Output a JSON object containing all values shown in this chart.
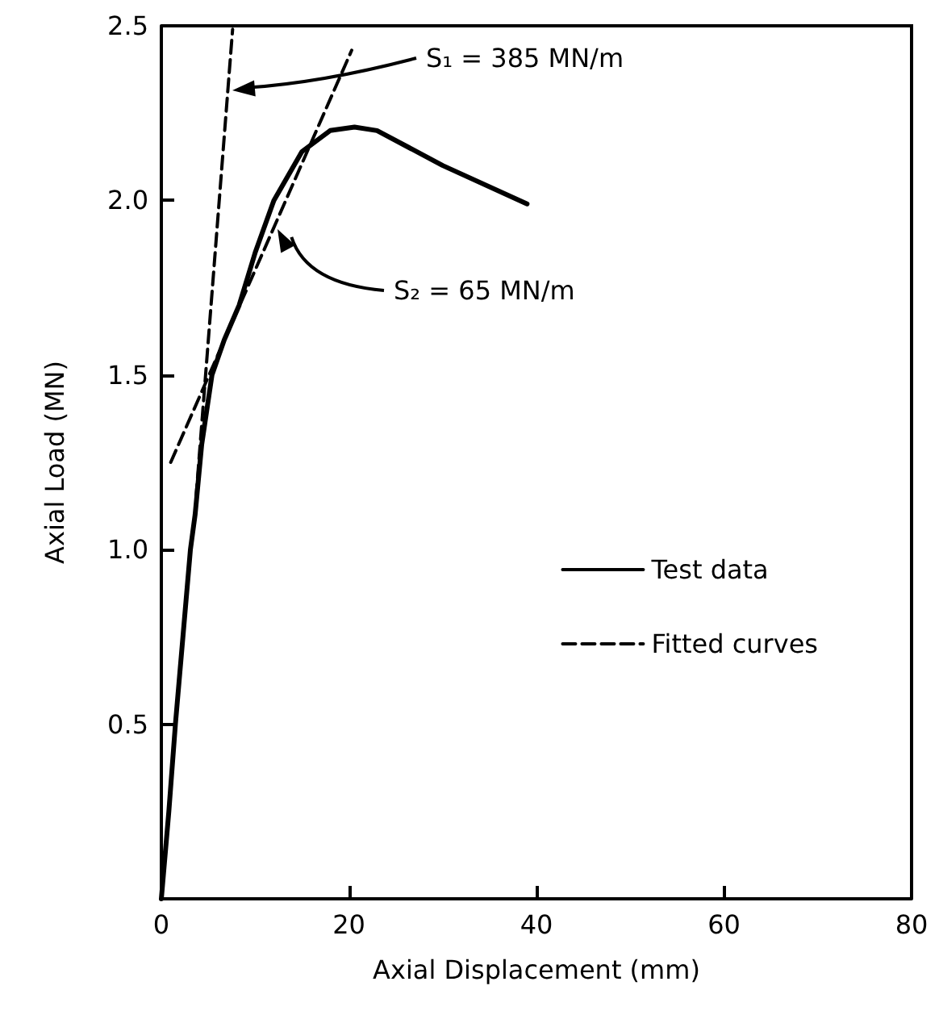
{
  "chart_data": {
    "type": "line",
    "xlabel": "Axial Displacement (mm)",
    "ylabel": "Axial Load (MN)",
    "xlim": [
      0,
      80
    ],
    "xticks": [
      0,
      20,
      40,
      60,
      80
    ],
    "ylim": [
      0,
      2.5
    ],
    "yticks": [
      {
        "value": 0,
        "label": null
      },
      0.5,
      {
        "value": 1,
        "label": "1.0"
      },
      1.5,
      {
        "value": 2,
        "label": "2.0"
      },
      2.5
    ],
    "grid": false,
    "legend": "right",
    "marker": "none",
    "series": [
      {
        "name": "Test data",
        "color": "#000000",
        "line_style": "solid",
        "x": [
          0,
          0.8,
          1.5,
          2.3,
          3.1,
          3.6,
          4.3,
          5.4,
          6.7,
          8.3,
          10,
          12,
          15,
          18,
          20.6,
          23,
          30,
          39
        ],
        "values": [
          0,
          0.25,
          0.5,
          0.75,
          1.0,
          1.1,
          1.3,
          1.5,
          1.6,
          1.7,
          1.85,
          2.0,
          2.14,
          2.2,
          2.21,
          2.2,
          2.1,
          1.99
        ]
      },
      {
        "name": "Fitted curves",
        "color": "#000000",
        "line_style": "dashed",
        "x": [
          3.7,
          7.6
        ],
        "values": [
          1.15,
          2.49
        ]
      },
      {
        "color": "#000000",
        "line_style": "dashed",
        "x": [
          1.0,
          20.3
        ],
        "values": [
          1.25,
          2.43
        ]
      }
    ],
    "annotations": [
      "S₁ = 385 MN/m",
      "S₂ = 65 MN/m"
    ]
  }
}
